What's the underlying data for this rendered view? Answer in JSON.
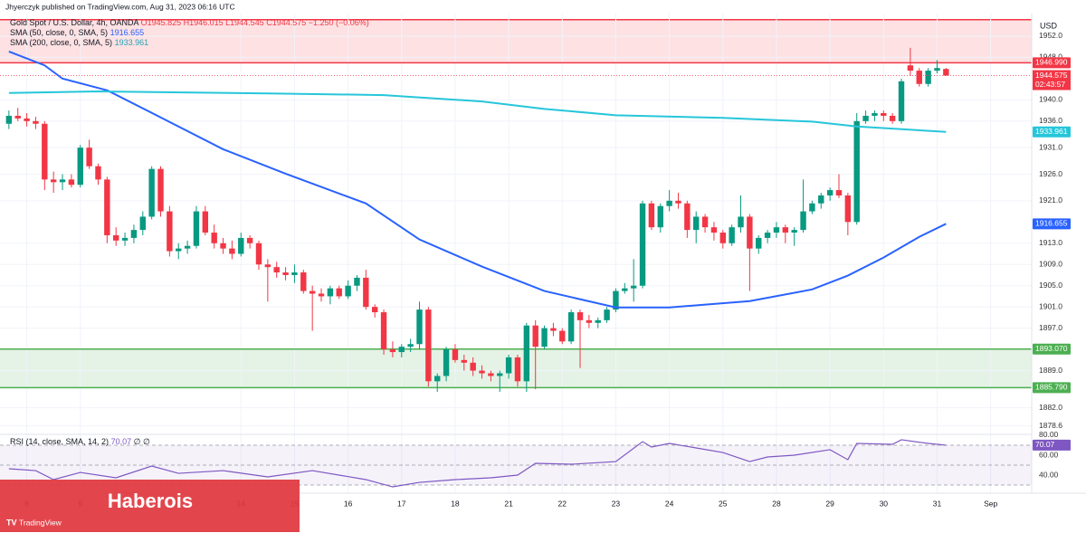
{
  "header": {
    "publisher": "Jhyerczyk published on TradingView.com, Aug 31, 2023 06:16 UTC",
    "currency": "USD",
    "watermark": "Haberois",
    "logo": "TradingView"
  },
  "chart_data": [
    {
      "type": "candlestick",
      "title": "Gold Spot / U.S. Dollar, 4h, OANDA",
      "ohlc_legend": "O1945.825 H1946.015 L1944.545 C1944.575 −1.250 (−0.06%)",
      "countdown": "02:43:57",
      "up_color": "#089981",
      "down_color": "#f23645",
      "open": [
        1935.5,
        1937,
        1936.5,
        1936,
        1935.5,
        1925,
        1924.5,
        1925,
        1924,
        1931,
        1927.5,
        1925,
        1914.5,
        1913.5,
        1914,
        1915.5,
        1918,
        1927,
        1919,
        1911.5,
        1912,
        1912.5,
        1919,
        1915,
        1913,
        1912,
        1911,
        1914,
        1913,
        1909,
        1908.5,
        1907.5,
        1907,
        1907.5,
        1904,
        1903.5,
        1903,
        1904.5,
        1903,
        1905,
        1906.5,
        1901,
        1900,
        1893,
        1892.5,
        1893.5,
        1894,
        1900.5,
        1887,
        1888,
        1893,
        1891,
        1890.5,
        1889,
        1888.5,
        1888,
        1888.5,
        1891.5,
        1887,
        1897.5,
        1893.5,
        1897,
        1896.5,
        1894.5,
        1900,
        1898.5,
        1898,
        1898.5,
        1900.5,
        1904,
        1904.5,
        1905,
        1920.5,
        1916,
        1920,
        1921,
        1920.5,
        1915.5,
        1918,
        1916,
        1915,
        1913,
        1916,
        1918,
        1912,
        1914,
        1915,
        1916,
        1915,
        1915.5,
        1919,
        1920.5,
        1922,
        1923,
        1922,
        1917,
        1936,
        1937,
        1937.5,
        1937,
        1936,
        1946.5,
        1945.5,
        1943,
        1945.5,
        1945.825
      ],
      "high": [
        1938,
        1938.5,
        1937.5,
        1936.8,
        1936,
        1926.5,
        1926,
        1926,
        1931.5,
        1932.5,
        1928,
        1925.5,
        1916,
        1915,
        1916.5,
        1919,
        1927.5,
        1927.5,
        1920,
        1913,
        1913.5,
        1920,
        1920,
        1916.5,
        1914,
        1913.5,
        1915,
        1914.5,
        1913.5,
        1910,
        1909.5,
        1908.5,
        1909,
        1908,
        1905,
        1904.5,
        1905,
        1905,
        1906,
        1907,
        1908,
        1901.5,
        1900.5,
        1894.5,
        1894,
        1895,
        1902,
        1901,
        1888.5,
        1893.5,
        1894,
        1892,
        1891.5,
        1890,
        1889,
        1889,
        1892,
        1892,
        1898,
        1898.5,
        1897.5,
        1898,
        1897,
        1900.5,
        1900.5,
        1899.5,
        1899,
        1901,
        1904.5,
        1905.5,
        1910,
        1921,
        1921,
        1920.5,
        1923,
        1922.5,
        1921,
        1919,
        1918.5,
        1917,
        1915.5,
        1916.5,
        1922,
        1918.5,
        1914.5,
        1915.5,
        1917,
        1916.5,
        1916,
        1925,
        1921,
        1922.5,
        1923.5,
        1926,
        1922.5,
        1937.5,
        1938,
        1938,
        1938,
        1937.5,
        1944,
        1949.8,
        1946,
        1946,
        1947.5,
        1946.015
      ],
      "low": [
        1934.5,
        1936,
        1935,
        1934.5,
        1923,
        1922.5,
        1923,
        1923.5,
        1923.5,
        1927,
        1924,
        1913,
        1912.5,
        1912.5,
        1913,
        1914.5,
        1917.5,
        1918,
        1910.5,
        1910,
        1911,
        1912,
        1914.5,
        1912,
        1911,
        1910,
        1910.5,
        1912,
        1908,
        1902,
        1906.5,
        1906,
        1905.5,
        1903.5,
        1896.5,
        1902,
        1901.5,
        1902.5,
        1902.5,
        1904,
        1900.5,
        1899,
        1892,
        1891.5,
        1891.5,
        1892.5,
        1893,
        1886,
        1885,
        1887,
        1890.5,
        1889,
        1888,
        1887.5,
        1887,
        1885,
        1887.5,
        1886,
        1885,
        1885.5,
        1893,
        1895.5,
        1894,
        1894,
        1889.5,
        1897,
        1897,
        1898,
        1900,
        1903.5,
        1902,
        1904.5,
        1915.5,
        1915,
        1919,
        1919.5,
        1914,
        1913,
        1915,
        1913.5,
        1912,
        1912.5,
        1915,
        1904,
        1911,
        1913,
        1914,
        1913,
        1912.5,
        1915,
        1918.5,
        1919.5,
        1921,
        1921.5,
        1914.5,
        1916.5,
        1935.5,
        1936,
        1936,
        1935.5,
        1935.5,
        1944.5,
        1942.5,
        1942.5,
        1945,
        1944.545
      ],
      "close": [
        1937,
        1936.5,
        1936,
        1935.5,
        1925,
        1924.5,
        1925,
        1924,
        1931,
        1927.5,
        1925,
        1914.5,
        1913.5,
        1914,
        1915.5,
        1918,
        1927,
        1919,
        1911.5,
        1912,
        1912.5,
        1919,
        1915,
        1913,
        1912,
        1911,
        1914,
        1913,
        1909,
        1908.5,
        1907.5,
        1907,
        1907.5,
        1904,
        1903.5,
        1903,
        1904.5,
        1903,
        1905,
        1906.5,
        1901,
        1900,
        1893,
        1892.5,
        1893.5,
        1894,
        1900.5,
        1887,
        1888,
        1893,
        1891,
        1890.5,
        1889,
        1888.5,
        1888,
        1888.5,
        1891.5,
        1887,
        1897.5,
        1893.5,
        1897,
        1896.5,
        1894.5,
        1900,
        1898.5,
        1898,
        1898.5,
        1900.5,
        1904,
        1904.5,
        1905,
        1920.5,
        1916,
        1920,
        1921,
        1920.5,
        1915.5,
        1918,
        1916,
        1915,
        1913,
        1916,
        1918,
        1912,
        1914,
        1915,
        1916,
        1915,
        1915.5,
        1919,
        1920.5,
        1922,
        1923,
        1922,
        1917,
        1936,
        1937,
        1937.5,
        1937,
        1936,
        1943.5,
        1945.5,
        1943,
        1945.5,
        1946,
        1944.575
      ],
      "lines": [
        {
          "name": "SMA (50, close, 0, SMA, 5)",
          "color": "#2962ff",
          "x": [
            0,
            4,
            6,
            11,
            17,
            24,
            31,
            40,
            46,
            53,
            60,
            68,
            74,
            83,
            90,
            94,
            98,
            102,
            105
          ],
          "values": [
            1949.1,
            1946.5,
            1944,
            1941.8,
            1936.7,
            1930.7,
            1926.1,
            1920.5,
            1913.7,
            1908.6,
            1904,
            1900.9,
            1900.9,
            1902.1,
            1904.3,
            1906.9,
            1910.3,
            1914.2,
            1916.655
          ]
        },
        {
          "name": "SMA (200, close, 0, SMA, 5)",
          "color": "#26c6da",
          "x": [
            0,
            10,
            30,
            42,
            53,
            60,
            68,
            80,
            90,
            95,
            105
          ],
          "values": [
            1941.3,
            1941.6,
            1941.2,
            1940.9,
            1939.7,
            1938.3,
            1937.1,
            1936.6,
            1935.9,
            1935,
            1933.961
          ]
        }
      ],
      "zones": [
        {
          "from": 1946.99,
          "to": 1955.1,
          "color": "#f23645"
        },
        {
          "from": 1885.79,
          "to": 1893.07,
          "color": "#4caf50"
        }
      ],
      "levels": [
        {
          "value": 1946.99,
          "label": "1946.990",
          "color": "#f23645"
        },
        {
          "value": 1893.07,
          "label": "1893.070",
          "color": "#4caf50"
        },
        {
          "value": 1885.79,
          "label": "1885.790",
          "color": "#4caf50"
        }
      ],
      "xlim": [
        -1,
        114.6
      ],
      "ylim": [
        1877,
        1955.4
      ],
      "yticks": [
        {
          "value": 1952,
          "label": "1952.0"
        },
        {
          "value": 1948,
          "label": "1948.0"
        },
        {
          "value": 1940,
          "label": "1940.0"
        },
        {
          "value": 1936,
          "label": "1936.0"
        },
        {
          "value": 1931,
          "label": "1931.0"
        },
        {
          "value": 1926,
          "label": "1926.0"
        },
        {
          "value": 1921,
          "label": "1921.0"
        },
        {
          "value": 1913,
          "label": "1913.0"
        },
        {
          "value": 1909,
          "label": "1909.0"
        },
        {
          "value": 1905,
          "label": "1905.0"
        },
        {
          "value": 1901,
          "label": "1901.0"
        },
        {
          "value": 1897,
          "label": "1897.0"
        },
        {
          "value": 1889,
          "label": "1889.0"
        },
        {
          "value": 1882,
          "label": "1882.0"
        },
        {
          "value": 1878.6,
          "label": "1878.6"
        }
      ],
      "xticks": [
        {
          "value": 2,
          "label": "8"
        },
        {
          "value": 8,
          "label": "9"
        },
        {
          "value": 26,
          "label": "14"
        },
        {
          "value": 32,
          "label": "15"
        },
        {
          "value": 38,
          "label": "16"
        },
        {
          "value": 44,
          "label": "17"
        },
        {
          "value": 50,
          "label": "18"
        },
        {
          "value": 56,
          "label": "21"
        },
        {
          "value": 62,
          "label": "22"
        },
        {
          "value": 68,
          "label": "23"
        },
        {
          "value": 74,
          "label": "24"
        },
        {
          "value": 80,
          "label": "25"
        },
        {
          "value": 86,
          "label": "28"
        },
        {
          "value": 92,
          "label": "29"
        },
        {
          "value": 98,
          "label": "30"
        },
        {
          "value": 104,
          "label": "31"
        },
        {
          "value": 110,
          "label": "Sep"
        }
      ],
      "grid": true
    },
    {
      "type": "line",
      "title": "RSI (14, close, SMA, 14, 2)",
      "extra": "∅ ∅",
      "color": "#7e57c2",
      "x": [
        0,
        3,
        5,
        8,
        12,
        16,
        19,
        24,
        29,
        34,
        40,
        43,
        46,
        50,
        54,
        57,
        59,
        63,
        68,
        71,
        72,
        74,
        77,
        80,
        83,
        85,
        88,
        92,
        94,
        95,
        99,
        100,
        103,
        105
      ],
      "values": [
        46.4,
        44.5,
        35.5,
        42.7,
        37.3,
        49.1,
        41.8,
        44.5,
        38.2,
        44.5,
        35.5,
        28.2,
        32.7,
        35.5,
        37.3,
        40,
        51.8,
        50.9,
        53.6,
        73.6,
        68.2,
        71.8,
        67.3,
        62.7,
        53.6,
        58.2,
        60,
        65.5,
        55.5,
        71.8,
        70.9,
        75.5,
        71.8,
        70.07
      ],
      "bands": [
        30,
        50,
        70
      ],
      "xlim": [
        -1,
        114.6
      ],
      "ylim": [
        26.4,
        80.9
      ],
      "yticks": [
        {
          "value": 80,
          "label": "80.00"
        },
        {
          "value": 60,
          "label": "60.00"
        },
        {
          "value": 40,
          "label": "40.00"
        }
      ]
    }
  ]
}
